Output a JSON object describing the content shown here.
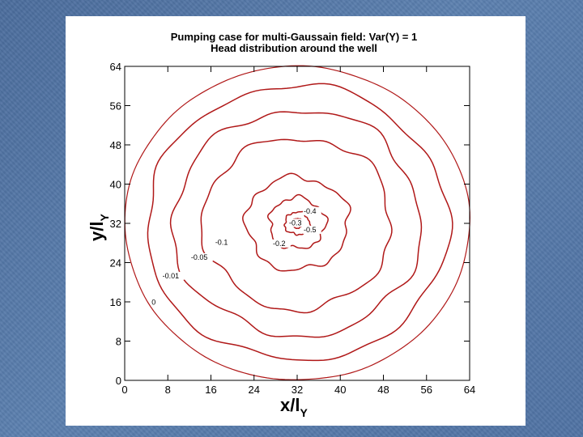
{
  "slide": {
    "background_color": "#5b7fae",
    "panel_color": "#ffffff"
  },
  "chart_data": {
    "type": "contour",
    "title_line1": "Pumping case for multi-Gaussain field: Var(Y) = 1",
    "title_line2": "Head distribution around the well",
    "xlabel": "x/l",
    "xlabel_sub": "Y",
    "ylabel": "y/l",
    "ylabel_sub": "Y",
    "xlim": [
      0,
      64
    ],
    "ylim": [
      0,
      64
    ],
    "x_ticks": [
      0,
      8,
      16,
      24,
      32,
      40,
      48,
      56,
      64
    ],
    "y_ticks": [
      0,
      8,
      16,
      24,
      32,
      40,
      48,
      56,
      64
    ],
    "well_center": [
      32,
      32
    ],
    "line_color": "#b01818",
    "contours": [
      {
        "level": "0",
        "radius": 32,
        "wobble": 0.15
      },
      {
        "level": "-0.01",
        "radius": 28,
        "wobble": 0.9
      },
      {
        "level": "-0.05",
        "radius": 23,
        "wobble": 1.1
      },
      {
        "level": "-0.1",
        "radius": 17.5,
        "wobble": 1.0
      },
      {
        "level": "-0.2",
        "radius": 9.5,
        "wobble": 0.8
      },
      {
        "level": "-0.3",
        "radius": 5.2,
        "wobble": 0.6
      },
      {
        "level": "-0.4",
        "radius": 2.3,
        "wobble": 0.3
      },
      {
        "level": "-0.5",
        "radius": 1.0,
        "wobble": 0.1
      }
    ],
    "contour_labels": [
      {
        "text": "0",
        "x": 5.0,
        "y": 15.4
      },
      {
        "text": "-0.01",
        "x": 7.0,
        "y": 20.8
      },
      {
        "text": "-0.05",
        "x": 12.3,
        "y": 24.6
      },
      {
        "text": "-0.1",
        "x": 16.8,
        "y": 27.6
      },
      {
        "text": "-0.2",
        "x": 27.5,
        "y": 27.4
      },
      {
        "text": "-0.3",
        "x": 30.5,
        "y": 31.6
      },
      {
        "text": "-0.4",
        "x": 33.2,
        "y": 34.0
      },
      {
        "text": "-0.5",
        "x": 33.2,
        "y": 30.2
      }
    ]
  }
}
